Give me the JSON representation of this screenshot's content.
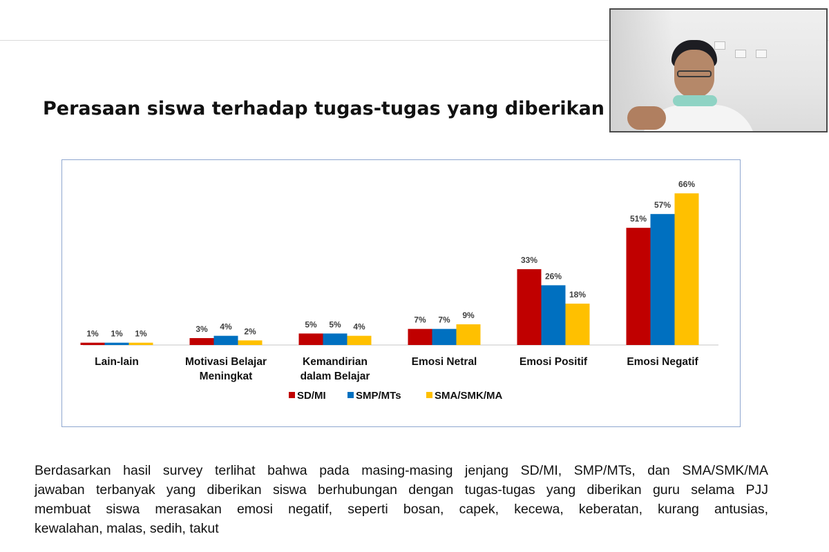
{
  "slide": {
    "title": "Perasaan siswa terhadap tugas-tugas yang diberikan gu",
    "caption_lines": [
      "Berdasarkan hasil survey terlihat bahwa pada masing-masing jenjang SD/MI, SMP/MTs, dan SMA/SMK/MA",
      "jawaban terbanyak yang diberikan siswa berhubungan dengan tugas-tugas yang diberikan guru selama PJJ",
      "membuat siswa merasakan emosi negatif, seperti bosan, capek, kecewa, keberatan, kurang antusias,",
      "kewalahan, malas, sedih, takut"
    ]
  },
  "webcam": {
    "icon": "webcam-video-feed"
  },
  "chart_data": {
    "type": "bar",
    "title": "",
    "xlabel": "",
    "ylabel": "",
    "ylim": [
      0,
      70
    ],
    "grid": false,
    "legend_placement": "bottom-center",
    "categories": [
      [
        "Lain-lain"
      ],
      [
        "Motivasi Belajar",
        "Meningkat"
      ],
      [
        "Kemandirian",
        "dalam Belajar"
      ],
      [
        "Emosi Netral"
      ],
      [
        "Emosi Positif"
      ],
      [
        "Emosi Negatif"
      ]
    ],
    "series": [
      {
        "name": "SD/MI",
        "color": "#c00000",
        "values": [
          1,
          3,
          5,
          7,
          33,
          51
        ],
        "labels": [
          "1%",
          "3%",
          "5%",
          "7%",
          "33%",
          "51%"
        ]
      },
      {
        "name": "SMP/MTs",
        "color": "#0070c0",
        "values": [
          1,
          4,
          5,
          7,
          26,
          57
        ],
        "labels": [
          "1%",
          "4%",
          "5%",
          "7%",
          "26%",
          "57%"
        ]
      },
      {
        "name": "SMA/SMK/MA",
        "color": "#ffc000",
        "values": [
          1,
          2,
          4,
          9,
          18,
          66
        ],
        "labels": [
          "1%",
          "2%",
          "4%",
          "9%",
          "18%",
          "66%"
        ]
      }
    ]
  }
}
